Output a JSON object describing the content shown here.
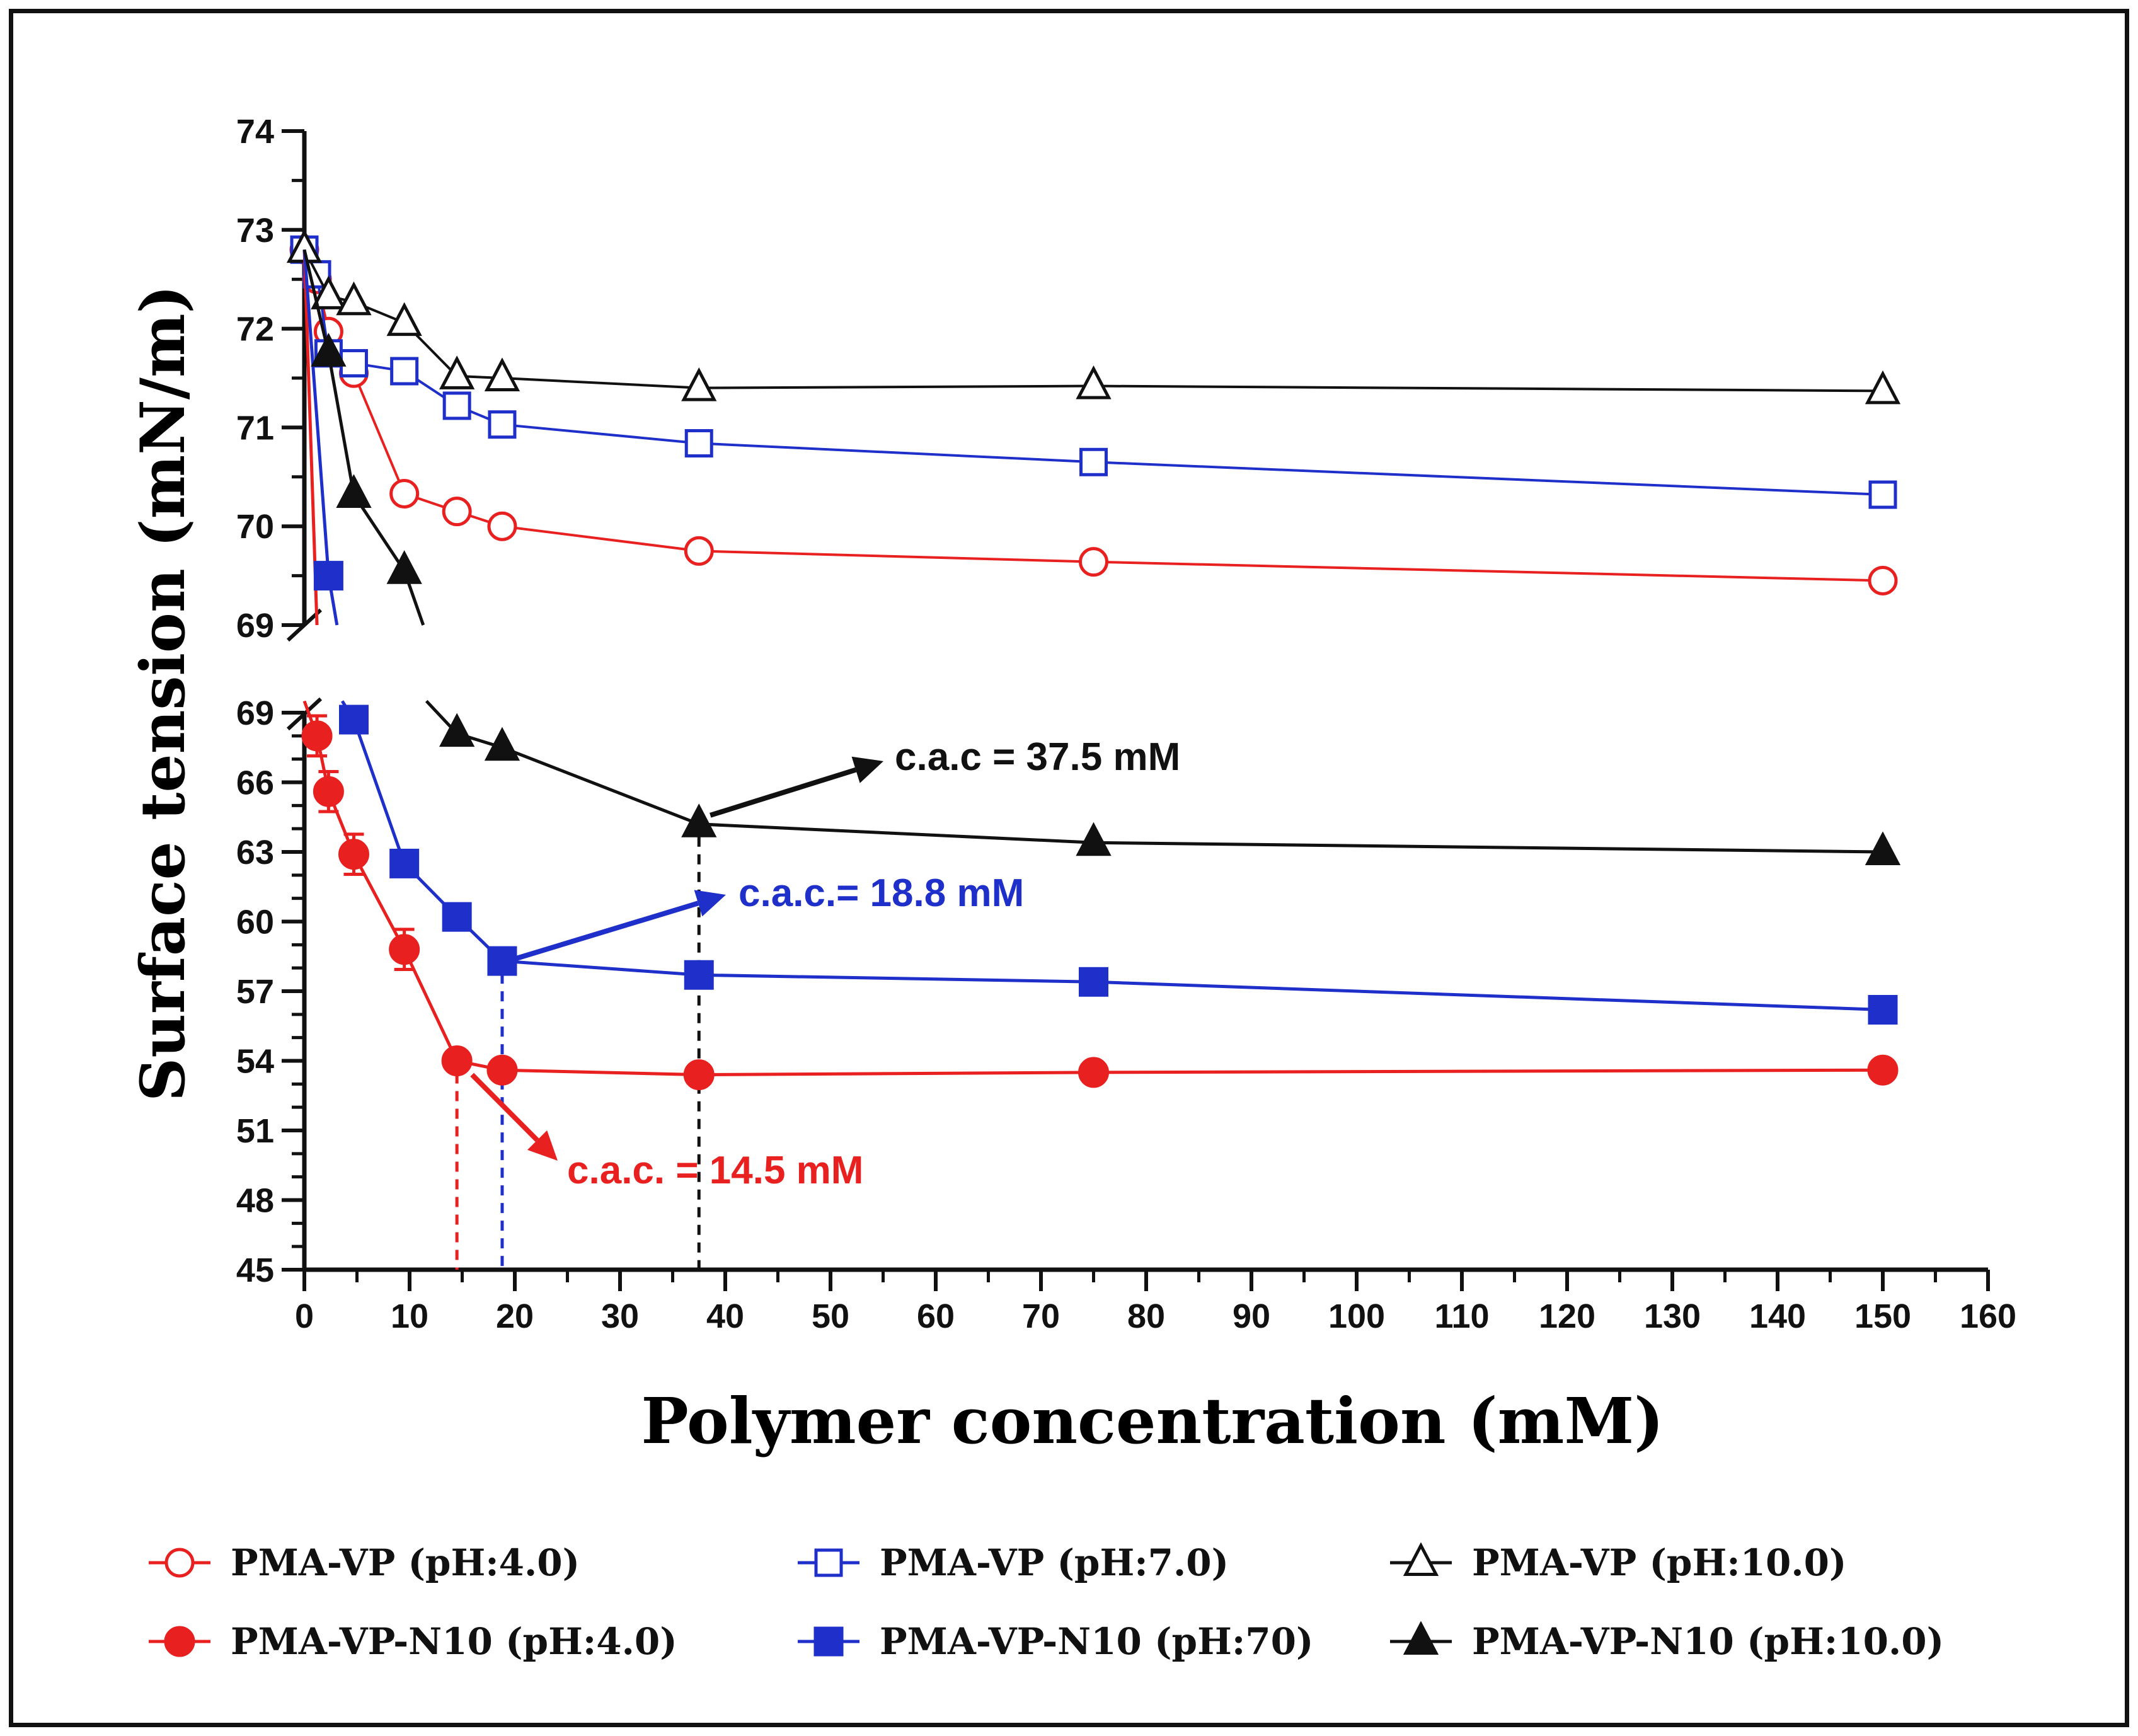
{
  "chart_data": {
    "type": "line",
    "xlabel": "Polymer concentration (mM)",
    "ylabel": "Surface tension (mN/m)",
    "x_axis": {
      "min": 0,
      "max": 160,
      "ticks": [
        0,
        10,
        20,
        30,
        40,
        50,
        60,
        70,
        80,
        90,
        100,
        110,
        120,
        130,
        140,
        150,
        160
      ],
      "tick_labels": [
        "0",
        "10",
        "20",
        "30",
        "40",
        "50",
        "60",
        "70",
        "80",
        "90",
        "100",
        "110",
        "120",
        "130",
        "140",
        "150",
        "160"
      ]
    },
    "y_axis_upper": {
      "min": 69,
      "max": 74,
      "ticks": [
        69,
        70,
        71,
        72,
        73,
        74
      ],
      "tick_labels": [
        "69",
        "70",
        "71",
        "72",
        "73",
        "74"
      ]
    },
    "y_axis_lower": {
      "min": 45,
      "max": 69,
      "ticks": [
        45,
        48,
        51,
        54,
        57,
        60,
        63,
        66,
        69
      ],
      "tick_labels": [
        "45",
        "48",
        "51",
        "54",
        "57",
        "60",
        "63",
        "66",
        "69"
      ]
    },
    "series": [
      {
        "name": "PMA-VP (pH:4.0)",
        "color": "#e8201f",
        "marker": "circle",
        "filled": false,
        "panel": "upper",
        "x": [
          0,
          1.2,
          2.3,
          4.7,
          9.5,
          14.5,
          18.8,
          37.5,
          75,
          150
        ],
        "y": [
          72.8,
          72.5,
          71.97,
          71.55,
          70.33,
          70.15,
          70.0,
          69.75,
          69.64,
          69.45
        ]
      },
      {
        "name": "PMA-VP (pH:7.0)",
        "color": "#1f2fc9",
        "marker": "square",
        "filled": false,
        "panel": "upper",
        "x": [
          0,
          1.2,
          2.3,
          4.7,
          9.5,
          14.5,
          18.8,
          37.5,
          75,
          150
        ],
        "y": [
          72.8,
          72.55,
          71.75,
          71.65,
          71.57,
          71.22,
          71.03,
          70.84,
          70.65,
          70.32
        ]
      },
      {
        "name": "PMA-VP (pH:10.0)",
        "color": "#111111",
        "marker": "triangle",
        "filled": false,
        "panel": "upper",
        "x": [
          0,
          2.3,
          4.7,
          9.5,
          14.5,
          18.8,
          37.5,
          75,
          150
        ],
        "y": [
          72.8,
          72.33,
          72.27,
          72.06,
          71.52,
          71.5,
          71.4,
          71.42,
          71.37
        ]
      },
      {
        "name": "PMA-VP-N10 (pH:4.0)",
        "color": "#e8201f",
        "marker": "circle",
        "filled": true,
        "panel": "lower",
        "x": [
          1.2,
          2.3,
          4.7,
          9.5,
          14.5,
          18.8,
          37.5,
          75,
          150
        ],
        "y": [
          68.0,
          65.6,
          62.9,
          58.8,
          54.0,
          53.6,
          53.4,
          53.5,
          53.6
        ],
        "err": [
          0.7,
          0.7,
          0.7,
          0.7,
          0,
          0,
          0,
          0,
          0
        ],
        "upper_panel": {
          "x": [
            0,
            1.2
          ],
          "y": [
            72.8,
            69.0
          ]
        }
      },
      {
        "name": "PMA-VP-N10 (pH:70)",
        "color": "#1f2fc9",
        "marker": "square",
        "filled": true,
        "panel": "lower",
        "x": [
          4.7,
          9.5,
          14.5,
          18.8,
          37.5,
          75,
          150
        ],
        "y": [
          68.7,
          62.5,
          60.2,
          58.3,
          57.7,
          57.4,
          56.2
        ],
        "upper_panel": {
          "x": [
            0,
            2.3,
            3.1
          ],
          "y": [
            72.8,
            69.5,
            69.0
          ]
        }
      },
      {
        "name": "PMA-VP-N10 (pH:10.0)",
        "color": "#111111",
        "marker": "triangle",
        "filled": true,
        "panel": "lower",
        "x": [
          14.5,
          18.8,
          37.5,
          75,
          150
        ],
        "y": [
          68.1,
          67.5,
          64.2,
          63.4,
          63.0
        ],
        "upper_panel": {
          "x": [
            0,
            2.3,
            4.7,
            9.5,
            11.3
          ],
          "y": [
            72.8,
            71.75,
            70.32,
            69.55,
            69.0
          ]
        }
      }
    ],
    "annotations": [
      {
        "text": "c.a.c = 37.5 mM",
        "color": "#111111",
        "x_value": 37.5,
        "y_value": 64.2
      },
      {
        "text": "c.a.c.= 18.8 mM",
        "color": "#1f2fc9",
        "x_value": 18.8,
        "y_value": 58.3
      },
      {
        "text": "c.a.c. = 14.5 mM",
        "color": "#e8201f",
        "x_value": 14.5,
        "y_value": 54.0
      }
    ],
    "legend_position": "bottom"
  }
}
